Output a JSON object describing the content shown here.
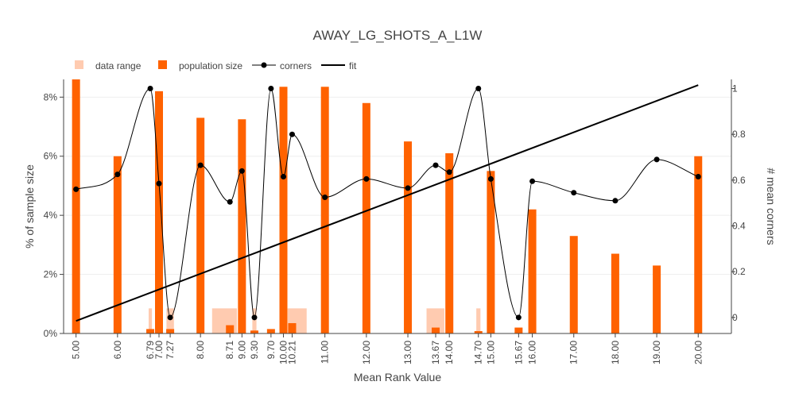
{
  "chart_data": {
    "type": "bar",
    "title": "AWAY_LG_SHOTS_A_L1W",
    "xlabel": "Mean Rank Value",
    "ylabel": "% of sample size",
    "y2label": "# mean corners",
    "x_range": [
      4.7,
      20.8
    ],
    "y_range": [
      0,
      8.6
    ],
    "y2_range": [
      -0.07,
      1.04
    ],
    "x_ticks": [
      5,
      6,
      6.79,
      7,
      7.27,
      8,
      8.71,
      9,
      9.3,
      9.7,
      10,
      10.21,
      11,
      12,
      13,
      13.67,
      14,
      14.7,
      15,
      15.67,
      16,
      17,
      18,
      19,
      20
    ],
    "x_tick_labels": [
      "5.00",
      "6.00",
      "6.79",
      "7.00",
      "7.27",
      "8.00",
      "8.71",
      "9.00",
      "9.30",
      "9.70",
      "10.00",
      "10.21",
      "11.00",
      "12.00",
      "13.00",
      "13.67",
      "14.00",
      "14.70",
      "15.00",
      "15.67",
      "16.00",
      "17.00",
      "18.00",
      "19.00",
      "20.00"
    ],
    "y_ticks": [
      0,
      2,
      4,
      6,
      8
    ],
    "y_tick_labels": [
      "0%",
      "2%",
      "4%",
      "6%",
      "8%"
    ],
    "y2_ticks": [
      0,
      0.2,
      0.4,
      0.6,
      0.8,
      1
    ],
    "y2_tick_labels": [
      "0",
      "0.2",
      "0.4",
      "0.6",
      "0.8",
      "1"
    ],
    "legend": {
      "placement": "top-left",
      "items": [
        {
          "label": "data range",
          "kind": "bar",
          "color": "#ffcbb0"
        },
        {
          "label": "population size",
          "kind": "bar",
          "color": "#ff6200"
        },
        {
          "label": "corners",
          "kind": "line-marker",
          "color": "#000000"
        },
        {
          "label": "fit",
          "kind": "line",
          "color": "#000000"
        }
      ]
    },
    "colors": {
      "data_range": "#ffcbb0",
      "population": "#ff6200",
      "corners": "#000000",
      "fit": "#000000"
    },
    "data_range": [
      {
        "x0": 6.75,
        "x1": 6.83,
        "value": 0.85
      },
      {
        "x0": 7.18,
        "x1": 7.36,
        "value": 0.85
      },
      {
        "x0": 8.28,
        "x1": 8.88,
        "value": 0.85
      },
      {
        "x0": 9.25,
        "x1": 9.35,
        "value": 0.85
      },
      {
        "x0": 10.1,
        "x1": 10.56,
        "value": 0.85
      },
      {
        "x0": 13.45,
        "x1": 13.88,
        "value": 0.85
      },
      {
        "x0": 14.65,
        "x1": 14.75,
        "value": 0.85
      }
    ],
    "population": [
      {
        "x": 5.0,
        "value": 8.6
      },
      {
        "x": 6.0,
        "value": 6.0
      },
      {
        "x": 6.79,
        "value": 0.15
      },
      {
        "x": 7.0,
        "value": 8.2
      },
      {
        "x": 7.27,
        "value": 0.15
      },
      {
        "x": 8.0,
        "value": 7.3
      },
      {
        "x": 8.71,
        "value": 0.28
      },
      {
        "x": 9.0,
        "value": 7.25
      },
      {
        "x": 9.3,
        "value": 0.1
      },
      {
        "x": 9.7,
        "value": 0.15
      },
      {
        "x": 10.0,
        "value": 8.35
      },
      {
        "x": 10.21,
        "value": 0.35
      },
      {
        "x": 11.0,
        "value": 8.35
      },
      {
        "x": 12.0,
        "value": 7.8
      },
      {
        "x": 13.0,
        "value": 6.5
      },
      {
        "x": 13.67,
        "value": 0.2
      },
      {
        "x": 14.0,
        "value": 6.1
      },
      {
        "x": 14.7,
        "value": 0.08
      },
      {
        "x": 15.0,
        "value": 5.5
      },
      {
        "x": 15.67,
        "value": 0.2
      },
      {
        "x": 16.0,
        "value": 4.2
      },
      {
        "x": 17.0,
        "value": 3.3
      },
      {
        "x": 18.0,
        "value": 2.7
      },
      {
        "x": 19.0,
        "value": 2.3
      },
      {
        "x": 20.0,
        "value": 6.0
      }
    ],
    "corners": [
      {
        "x": 5.0,
        "y": 0.56
      },
      {
        "x": 6.0,
        "y": 0.625
      },
      {
        "x": 6.79,
        "y": 1.0
      },
      {
        "x": 7.0,
        "y": 0.585
      },
      {
        "x": 7.27,
        "y": 0.0
      },
      {
        "x": 8.0,
        "y": 0.665
      },
      {
        "x": 8.71,
        "y": 0.505
      },
      {
        "x": 9.0,
        "y": 0.64
      },
      {
        "x": 9.3,
        "y": 0.0
      },
      {
        "x": 9.7,
        "y": 1.0
      },
      {
        "x": 10.0,
        "y": 0.615
      },
      {
        "x": 10.21,
        "y": 0.8
      },
      {
        "x": 11.0,
        "y": 0.525
      },
      {
        "x": 12.0,
        "y": 0.605
      },
      {
        "x": 13.0,
        "y": 0.565
      },
      {
        "x": 13.67,
        "y": 0.665
      },
      {
        "x": 14.0,
        "y": 0.635
      },
      {
        "x": 14.7,
        "y": 1.0
      },
      {
        "x": 15.0,
        "y": 0.605
      },
      {
        "x": 15.67,
        "y": 0.0
      },
      {
        "x": 16.0,
        "y": 0.595
      },
      {
        "x": 17.0,
        "y": 0.545
      },
      {
        "x": 18.0,
        "y": 0.51
      },
      {
        "x": 19.0,
        "y": 0.69
      },
      {
        "x": 20.0,
        "y": 0.615
      }
    ],
    "fit": [
      {
        "x": 5.0,
        "y": -0.015
      },
      {
        "x": 20.0,
        "y": 1.015
      }
    ]
  }
}
